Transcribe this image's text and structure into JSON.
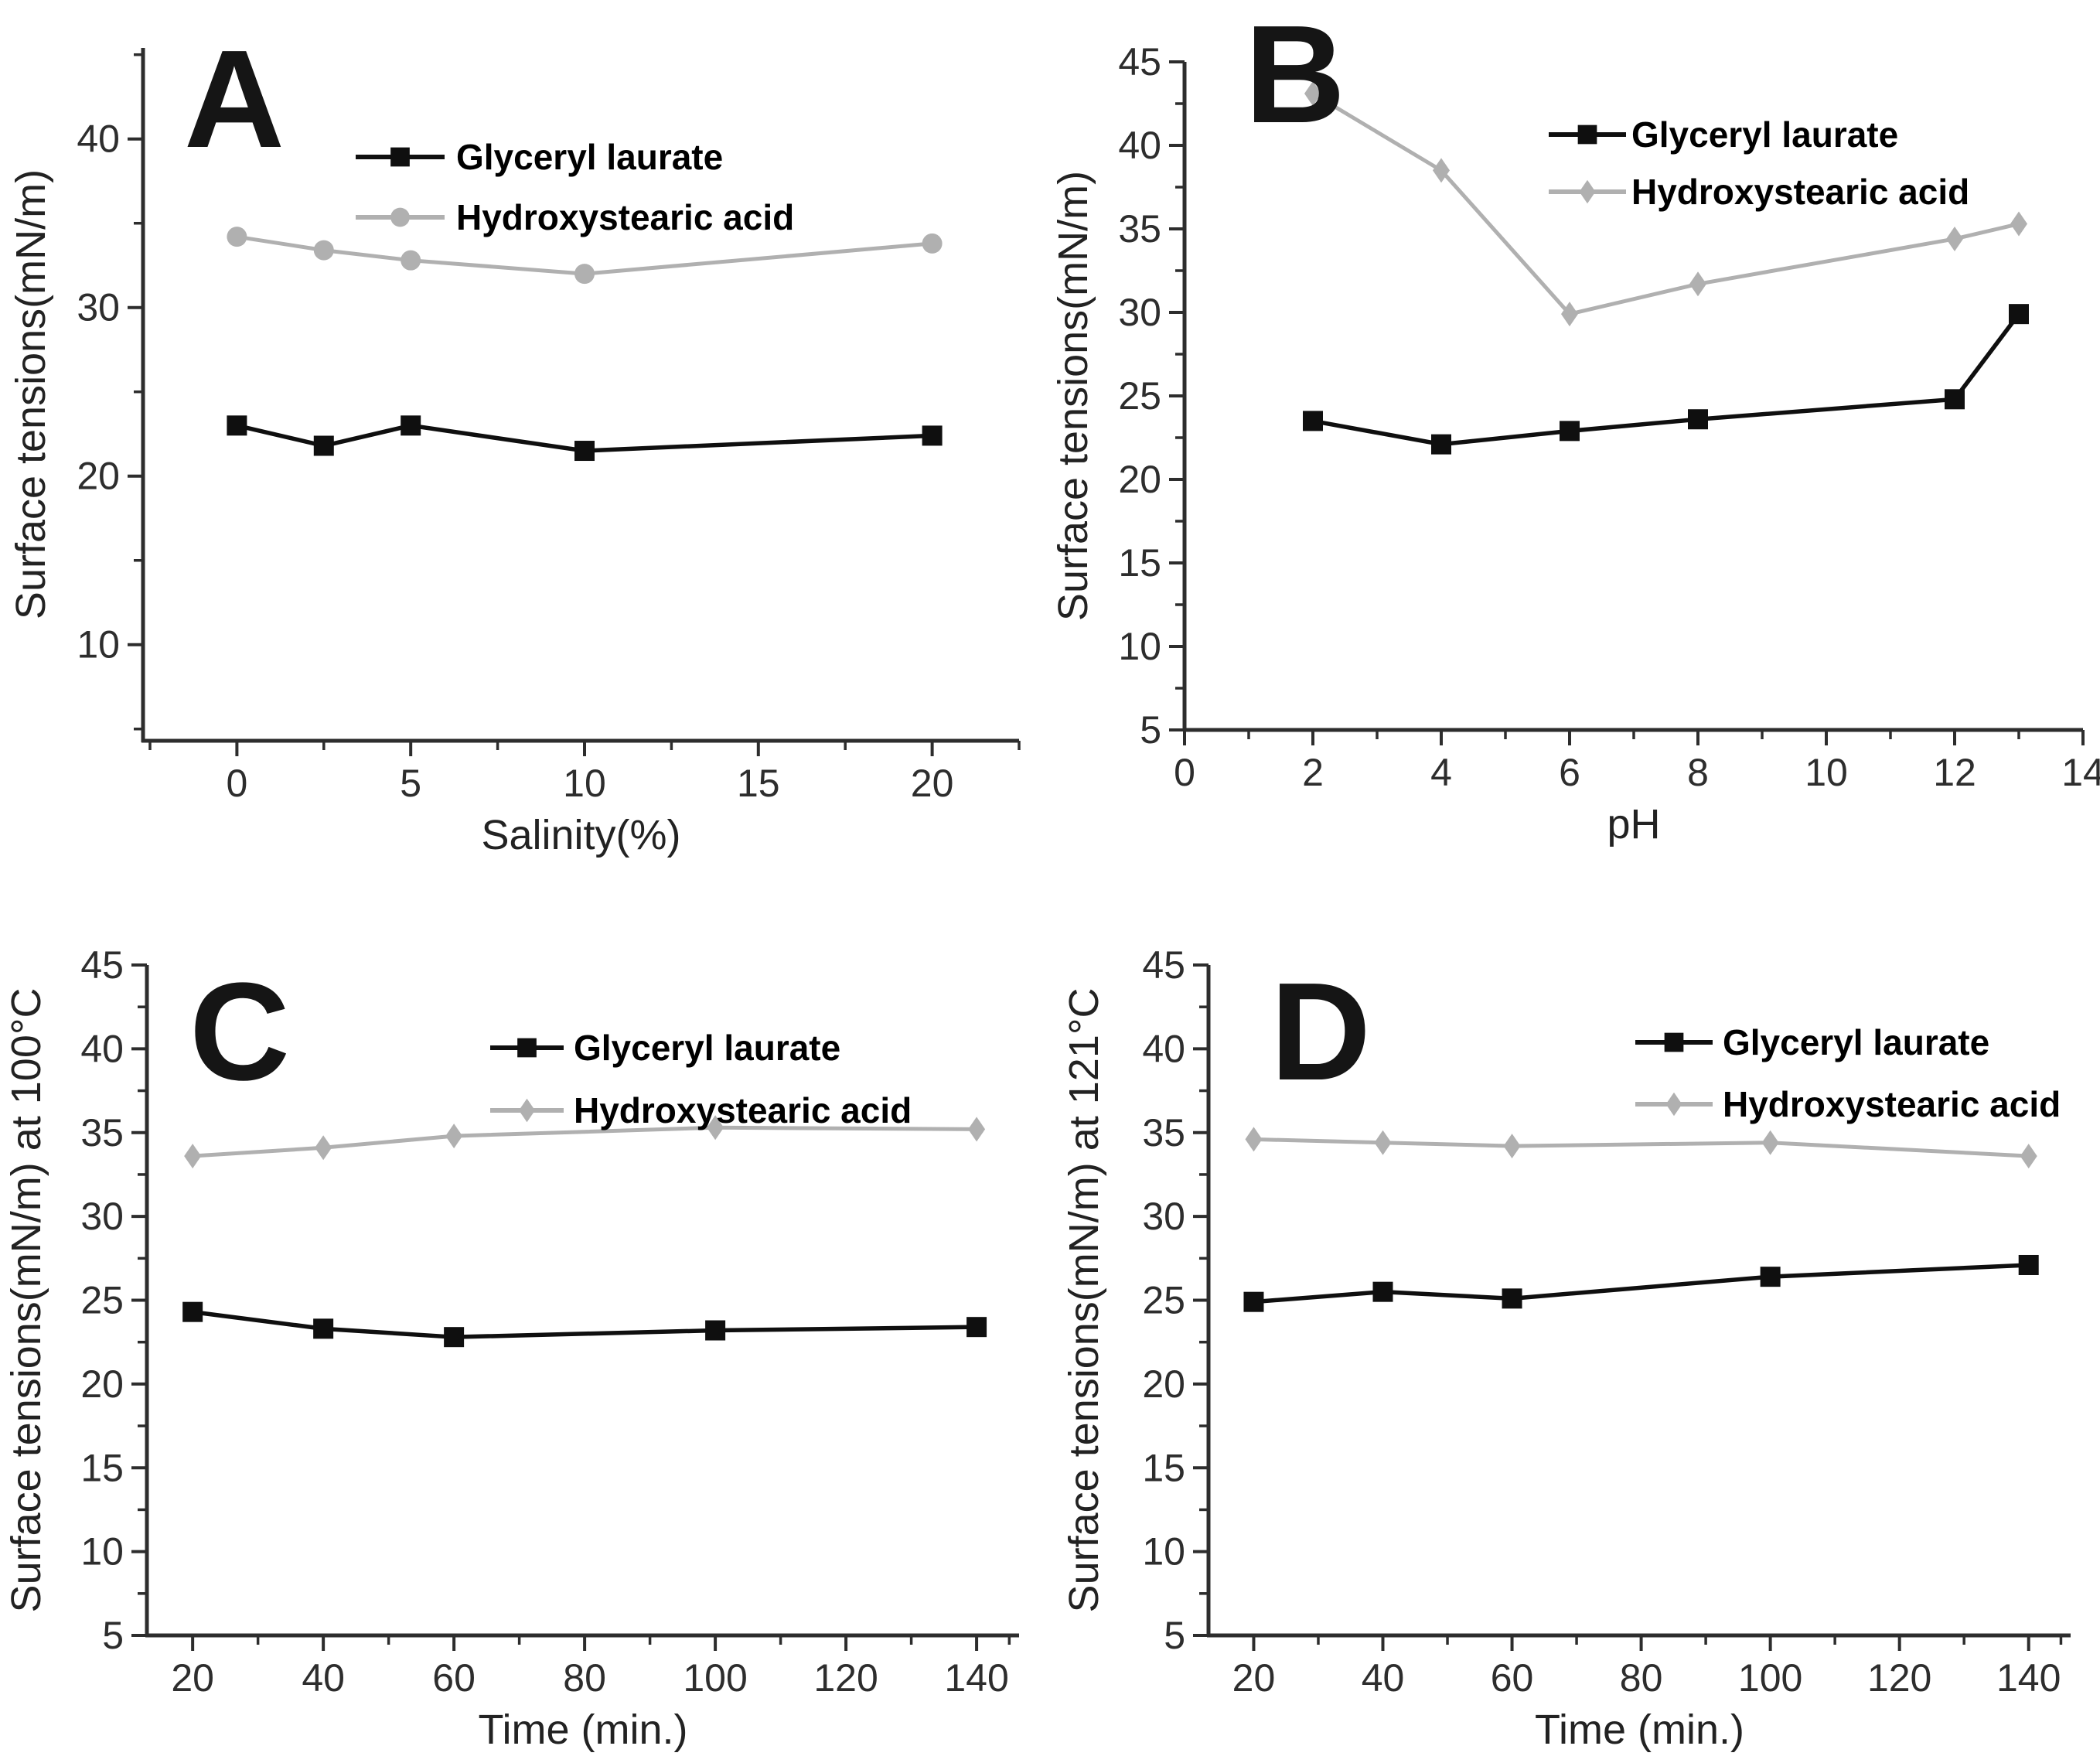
{
  "figure": {
    "background": "#ffffff",
    "panel_letters": [
      "A",
      "B",
      "C",
      "D"
    ],
    "series_legend": [
      "Glyceryl laurate",
      "Hydroxystearic acid"
    ],
    "colors": {
      "glyceryl_laurate": "#0f0f0f",
      "hydroxystearic_acid": "#b0b0b0",
      "axis": "#2d2d2d",
      "tick_label": "#2d2d2d",
      "legend_text": "#000000"
    }
  },
  "chart_data": [
    {
      "id": "A",
      "type": "line",
      "panel_letter": "A",
      "xlabel": "Salinity(%)",
      "ylabel": "Surface tensions(mN/m)",
      "xlim": [
        -2.7,
        22.5
      ],
      "ylim": [
        4.3,
        45.4
      ],
      "xticks": [
        0,
        5,
        10,
        15,
        20
      ],
      "xticks_minor": [
        -2.5,
        2.5,
        7.5,
        12.5,
        17.5,
        22.5
      ],
      "yticks": [
        10,
        20,
        30,
        40
      ],
      "yticks_minor": [
        5,
        15,
        25,
        35,
        45
      ],
      "grid": false,
      "legend_position": "upper-center",
      "series": [
        {
          "name": "Glyceryl laurate",
          "color": "#0f0f0f",
          "marker": "square",
          "x": [
            0,
            2.5,
            5,
            10,
            20
          ],
          "y": [
            23.0,
            21.8,
            23.0,
            21.5,
            22.4
          ]
        },
        {
          "name": "Hydroxystearic acid",
          "color": "#b0b0b0",
          "marker": "circle",
          "x": [
            0,
            2.5,
            5,
            10,
            20
          ],
          "y": [
            34.2,
            33.4,
            32.8,
            32.0,
            33.8
          ]
        }
      ]
    },
    {
      "id": "B",
      "type": "line",
      "panel_letter": "B",
      "xlabel": "pH",
      "ylabel": "Surface tensions(mN/m)",
      "xlim": [
        0,
        14
      ],
      "ylim": [
        5,
        45
      ],
      "xticks": [
        0,
        2,
        4,
        6,
        8,
        10,
        12,
        14
      ],
      "xticks_minor": [
        1,
        3,
        5,
        7,
        9,
        11,
        13
      ],
      "yticks": [
        5,
        10,
        15,
        20,
        25,
        30,
        35,
        40,
        45
      ],
      "yticks_minor": [
        7.5,
        12.5,
        17.5,
        22.5,
        27.5,
        32.5,
        37.5,
        42.5
      ],
      "grid": false,
      "legend_position": "upper-right",
      "series": [
        {
          "name": "Glyceryl laurate",
          "color": "#0f0f0f",
          "marker": "square",
          "x": [
            2,
            4,
            6,
            8,
            12,
            13
          ],
          "y": [
            23.5,
            22.1,
            22.9,
            23.6,
            24.8,
            29.9
          ]
        },
        {
          "name": "Hydroxystearic acid",
          "color": "#b0b0b0",
          "marker": "diamond",
          "x": [
            2,
            4,
            6,
            8,
            12,
            13
          ],
          "y": [
            43.1,
            38.5,
            29.9,
            31.7,
            34.4,
            35.3
          ]
        }
      ]
    },
    {
      "id": "C",
      "type": "line",
      "panel_letter": "C",
      "xlabel": "Time (min.)",
      "ylabel": "Surface tensions(mN/m) at 100°C",
      "xlim": [
        13,
        146.5
      ],
      "ylim": [
        5,
        45
      ],
      "xticks": [
        20,
        40,
        60,
        80,
        100,
        120,
        140
      ],
      "xticks_minor": [
        30,
        50,
        70,
        90,
        110,
        130,
        145
      ],
      "yticks": [
        5,
        10,
        15,
        20,
        25,
        30,
        35,
        40,
        45
      ],
      "yticks_minor": [
        7.5,
        12.5,
        17.5,
        22.5,
        27.5,
        32.5,
        37.5,
        42.5
      ],
      "grid": false,
      "legend_position": "upper-center",
      "series": [
        {
          "name": "Glyceryl laurate",
          "color": "#0f0f0f",
          "marker": "square",
          "x": [
            20,
            40,
            60,
            100,
            140
          ],
          "y": [
            24.3,
            23.3,
            22.8,
            23.2,
            23.4
          ]
        },
        {
          "name": "Hydroxystearic acid",
          "color": "#b0b0b0",
          "marker": "diamond",
          "x": [
            20,
            40,
            60,
            100,
            140
          ],
          "y": [
            33.6,
            34.1,
            34.8,
            35.3,
            35.2
          ]
        }
      ]
    },
    {
      "id": "D",
      "type": "line",
      "panel_letter": "D",
      "xlabel": "Time (min.)",
      "ylabel": "Surface tensions(mN/m) at 121°C",
      "xlim": [
        13,
        146.5
      ],
      "ylim": [
        5,
        45
      ],
      "xticks": [
        20,
        40,
        60,
        80,
        100,
        120,
        140
      ],
      "xticks_minor": [
        30,
        50,
        70,
        90,
        110,
        130,
        145
      ],
      "yticks": [
        5,
        10,
        15,
        20,
        25,
        30,
        35,
        40,
        45
      ],
      "yticks_minor": [
        7.5,
        12.5,
        17.5,
        22.5,
        27.5,
        32.5,
        37.5,
        42.5
      ],
      "grid": false,
      "legend_position": "upper-center",
      "series": [
        {
          "name": "Glyceryl laurate",
          "color": "#0f0f0f",
          "marker": "square",
          "x": [
            20,
            40,
            60,
            100,
            140
          ],
          "y": [
            24.9,
            25.5,
            25.1,
            26.4,
            27.1
          ]
        },
        {
          "name": "Hydroxystearic acid",
          "color": "#b0b0b0",
          "marker": "diamond",
          "x": [
            20,
            40,
            60,
            100,
            140
          ],
          "y": [
            34.6,
            34.4,
            34.2,
            34.4,
            33.6
          ]
        }
      ]
    }
  ]
}
